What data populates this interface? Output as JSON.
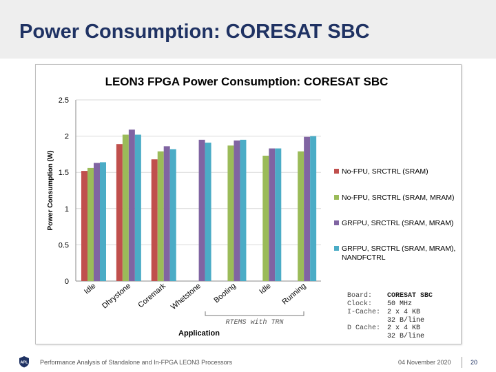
{
  "slide": {
    "title": "Power Consumption: CORESAT SBC",
    "footer_text": "Performance Analysis of Standalone and In-FPGA LEON3 Processors",
    "date": "04 November 2020",
    "page": "20",
    "logo_text": "APL"
  },
  "board_info": [
    {
      "key": "Board:",
      "value": "CORESAT SBC"
    },
    {
      "key": "Clock:",
      "value": "50 MHz"
    },
    {
      "key": "I-Cache:",
      "value": "2 x 4 KB"
    },
    {
      "key": "",
      "value": "32 B/line"
    },
    {
      "key": "D Cache:",
      "value": "2 x 4 KB"
    },
    {
      "key": "",
      "value": "32 B/line"
    }
  ],
  "colors": {
    "series": [
      "#c0504d",
      "#9bbb59",
      "#8064a2",
      "#4bacc6"
    ],
    "title": "#1f3263"
  },
  "chart_data": {
    "type": "bar",
    "title": "LEON3 FPGA Power Consumption: CORESAT SBC",
    "xlabel": "Application",
    "ylabel": "Power Consumption (W)",
    "ylim": [
      0,
      2.5
    ],
    "yticks": [
      "0",
      "0.5",
      "1",
      "1.5",
      "2",
      "2.5"
    ],
    "categories": [
      "Idle",
      "Dhrystone",
      "Coremark",
      "Whetstone",
      "Booting",
      "Idle",
      "Running"
    ],
    "bracket_label": "RTEMS with TRN",
    "series": [
      {
        "name": "No-FPU, SRCTRL (SRAM)",
        "values": [
          1.52,
          1.89,
          1.68,
          null,
          null,
          null,
          null
        ]
      },
      {
        "name": "No-FPU, SRCTRL (SRAM, MRAM)",
        "values": [
          1.56,
          2.02,
          1.79,
          null,
          1.87,
          1.73,
          1.79
        ]
      },
      {
        "name": "GRFPU, SRCTRL (SRAM, MRAM)",
        "values": [
          1.63,
          2.09,
          1.86,
          1.95,
          1.94,
          1.83,
          1.99
        ]
      },
      {
        "name": "GRFPU, SRCTRL (SRAM, MRAM), NANDFCTRL",
        "values": [
          1.64,
          2.02,
          1.82,
          1.91,
          1.95,
          1.83,
          2.0
        ]
      }
    ]
  }
}
